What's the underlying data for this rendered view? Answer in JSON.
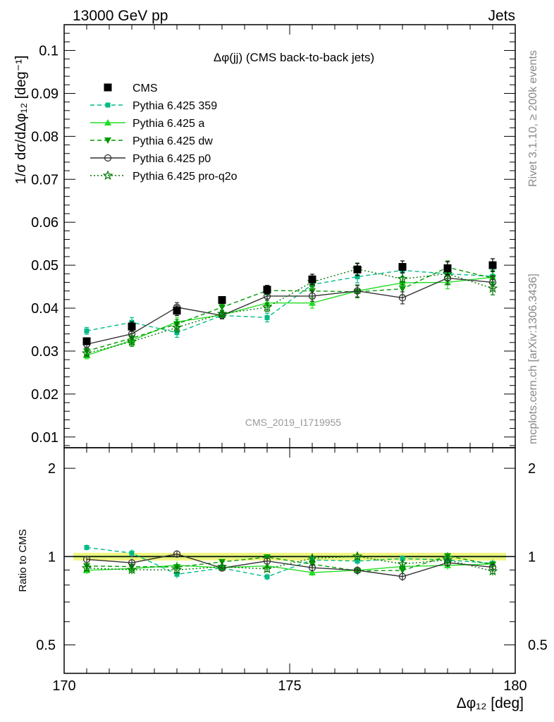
{
  "header": {
    "left": "13000 GeV pp",
    "right": "Jets"
  },
  "side": {
    "top": "Rivet 3.1.10, ≥ 200k events",
    "bottom": "mcplots.cern.ch [arXiv:1306.3436]"
  },
  "watermark": "CMS_2019_I1719955",
  "ratio_ylabel": "Ratio to CMS",
  "chart_data": [
    {
      "type": "line",
      "title": "Δφ(jj) (CMS back-to-back jets)",
      "xlabel": "Δφ₁₂ [deg]",
      "ylabel": "1/σ dσ/dΔφ₁₂ [deg⁻¹]",
      "xlim": [
        170,
        180
      ],
      "ylim": [
        0.0075,
        0.106
      ],
      "xticks": [
        170,
        175,
        180
      ],
      "yticks": [
        0.01,
        0.02,
        0.03,
        0.04,
        0.05,
        0.06,
        0.07,
        0.08,
        0.09,
        0.1
      ],
      "x": [
        170.5,
        171.5,
        172.5,
        173.5,
        174.5,
        175.5,
        176.5,
        177.5,
        178.5,
        179.5
      ],
      "grid": false,
      "legend_position": "top-left",
      "series": [
        {
          "name": "CMS",
          "color": "#000000",
          "marker": "square",
          "line": "none",
          "values": [
            0.0323,
            0.0357,
            0.0394,
            0.0419,
            0.0443,
            0.0467,
            0.049,
            0.0496,
            0.0493,
            0.05
          ]
        },
        {
          "name": "Pythia 6.425 359",
          "color": "#00BB88",
          "marker": "square-small",
          "line": "dashed",
          "values": [
            0.0347,
            0.0367,
            0.0343,
            0.0383,
            0.0378,
            0.0455,
            0.0473,
            0.0488,
            0.048,
            0.0474
          ]
        },
        {
          "name": "Pythia 6.425 a",
          "color": "#22DD22",
          "marker": "triangle-up",
          "line": "solid",
          "values": [
            0.029,
            0.0325,
            0.0368,
            0.0384,
            0.0412,
            0.0412,
            0.044,
            0.0459,
            0.046,
            0.0472
          ]
        },
        {
          "name": "Pythia 6.425 dw",
          "color": "#009900",
          "marker": "triangle-down",
          "line": "dashed",
          "values": [
            0.03,
            0.033,
            0.0363,
            0.0402,
            0.0441,
            0.044,
            0.0438,
            0.0445,
            0.0495,
            0.047
          ]
        },
        {
          "name": "Pythia 6.425 p0",
          "color": "#333333",
          "marker": "circle-open",
          "line": "solid",
          "values": [
            0.0316,
            0.034,
            0.0402,
            0.0383,
            0.0428,
            0.0428,
            0.044,
            0.0424,
            0.047,
            0.046
          ]
        },
        {
          "name": "Pythia 6.425 pro-q2o",
          "color": "#007700",
          "marker": "star-open",
          "line": "dotted",
          "values": [
            0.0295,
            0.0322,
            0.0355,
            0.0387,
            0.0402,
            0.0461,
            0.0491,
            0.0468,
            0.048,
            0.0446
          ]
        }
      ],
      "error": [
        0.0008,
        0.0011,
        0.0011,
        0.0008,
        0.001,
        0.0012,
        0.0014,
        0.0014,
        0.0015,
        0.0015
      ]
    },
    {
      "type": "line",
      "ylabel": "Ratio to CMS",
      "xlabel": "Δφ₁₂ [deg]",
      "xlim": [
        170,
        180
      ],
      "ylim": [
        0.4,
        2.35
      ],
      "log_y": true,
      "yticks": [
        0.5,
        1,
        2
      ],
      "ytick_labels": [
        "0.5",
        "1",
        "2"
      ],
      "band": [
        0.97,
        1.03
      ]
    }
  ]
}
